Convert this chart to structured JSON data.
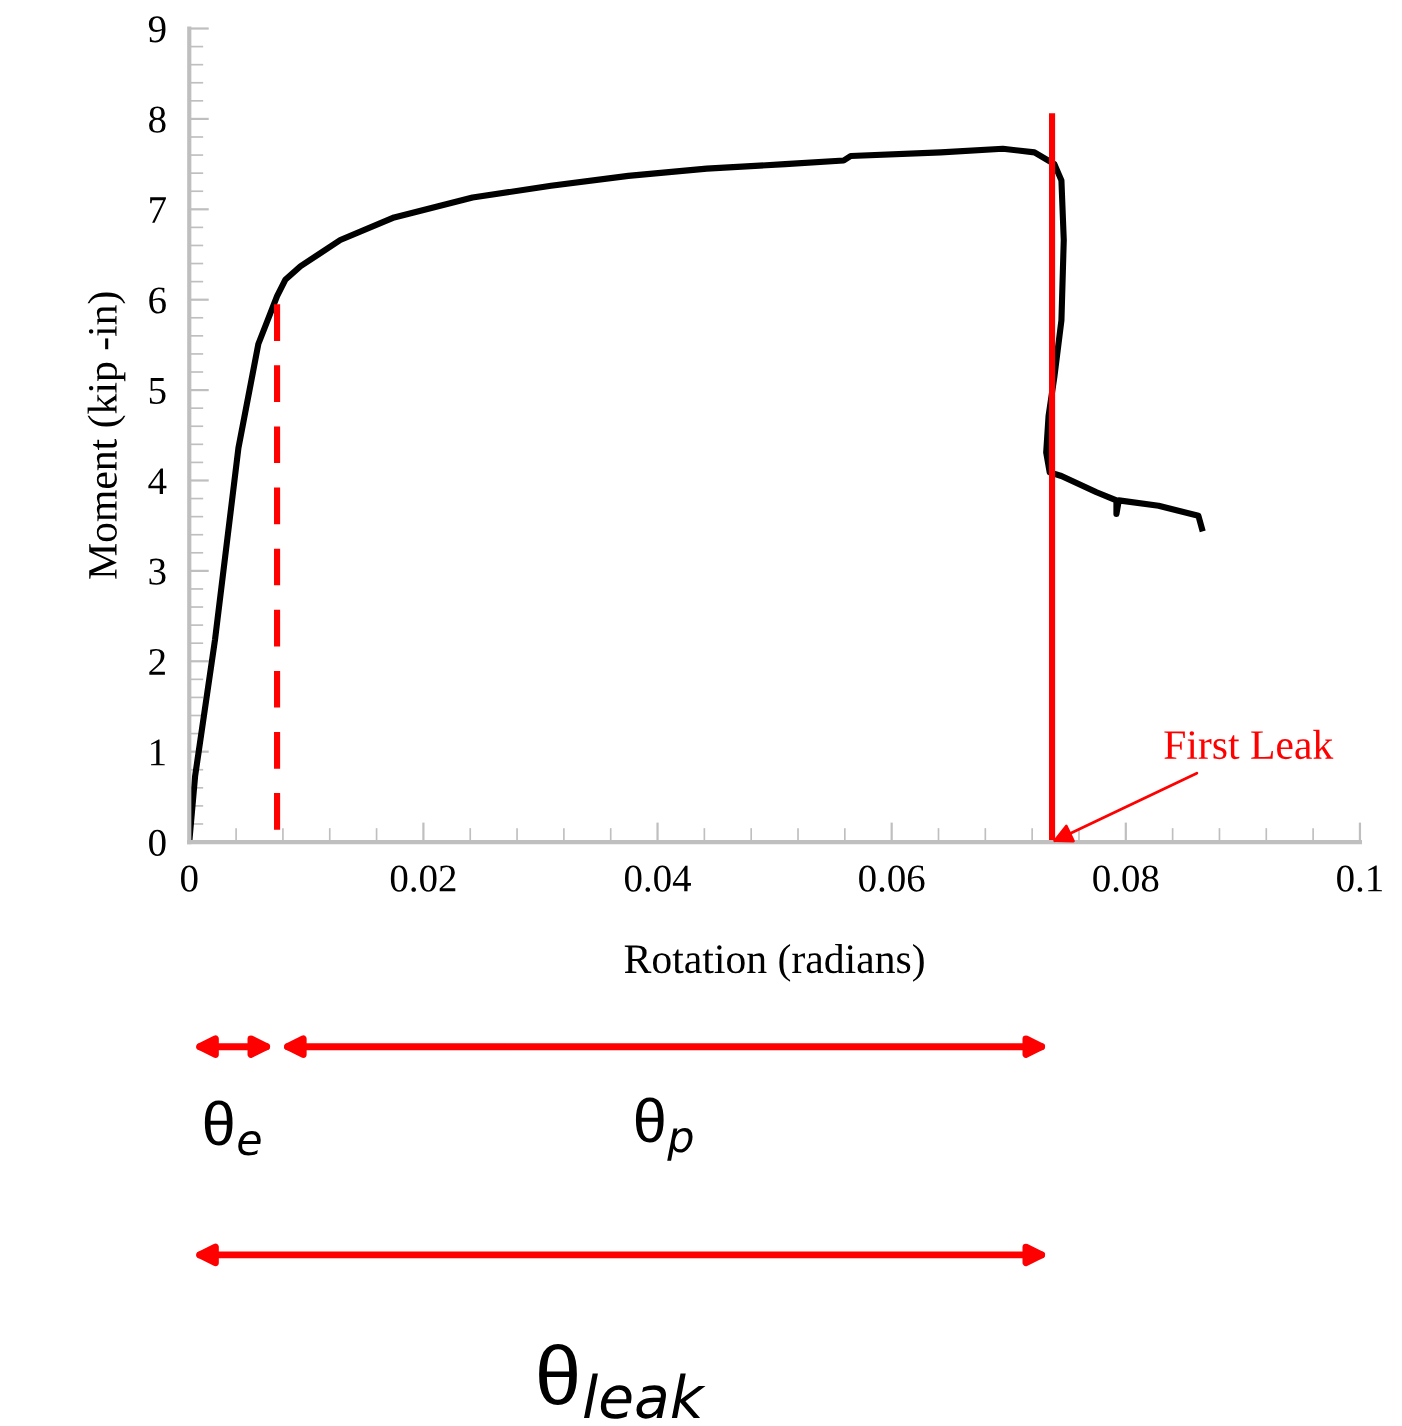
{
  "chart_data": {
    "type": "line",
    "xlabel": "Rotation (radians)",
    "ylabel": "Moment (kip -in)",
    "xlim": [
      0,
      0.1
    ],
    "xticks": [
      0,
      0.02,
      0.04,
      0.06,
      0.08,
      0.1
    ],
    "ylim": [
      0,
      9
    ],
    "yticks": [
      0,
      1,
      2,
      3,
      4,
      5,
      6,
      7,
      8,
      9
    ],
    "grid": false,
    "legend": false,
    "marker": "none",
    "series": [
      {
        "color": "#000000",
        "line_style": "solid",
        "x": [
          0,
          0.0005,
          0.0022,
          0.0042,
          0.0059,
          0.0075,
          0.0082,
          0.0095,
          0.0129,
          0.0175,
          0.0242,
          0.0309,
          0.0375,
          0.0442,
          0.0509,
          0.0559,
          0.0565,
          0.0642,
          0.0695,
          0.0722,
          0.0739,
          0.0745,
          0.0747,
          0.0745,
          0.0739,
          0.0734,
          0.0732,
          0.0735,
          0.0745,
          0.0775,
          0.0792,
          0.0792,
          0.0794,
          0.0828,
          0.0862,
          0.0865
        ],
        "values": [
          0,
          0.73,
          2.24,
          4.36,
          5.51,
          6.04,
          6.22,
          6.37,
          6.66,
          6.91,
          7.13,
          7.26,
          7.37,
          7.45,
          7.5,
          7.54,
          7.59,
          7.63,
          7.67,
          7.63,
          7.5,
          7.32,
          6.66,
          5.77,
          5.15,
          4.71,
          4.31,
          4.09,
          4.05,
          3.87,
          3.78,
          3.63,
          3.78,
          3.72,
          3.61,
          3.47
        ]
      },
      {
        "color": "#ff0000",
        "line_style": "dashed",
        "x": [
          0.0075,
          0.0075
        ],
        "values": [
          0,
          5.95
        ]
      },
      {
        "color": "#ff0000",
        "line_style": "solid",
        "x": [
          0.0737,
          0.0737
        ],
        "values": [
          0,
          8.03
        ]
      }
    ],
    "annotations": [
      {
        "text": "First Leak",
        "x": 0.0737,
        "y": 0
      },
      "θ$_{e}$",
      "θ$_{p}$",
      "θ$_{leak}$"
    ]
  }
}
